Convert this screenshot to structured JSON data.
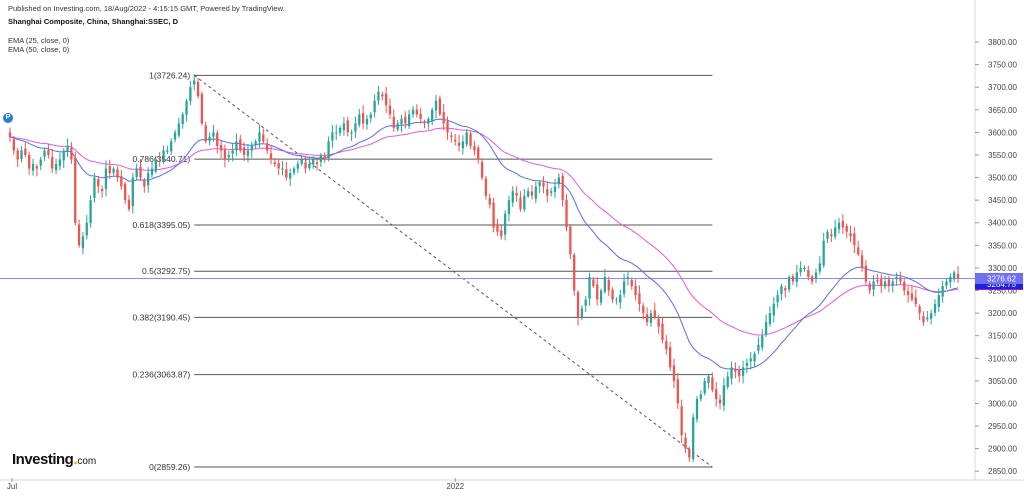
{
  "header": {
    "published": "Published on Investing.com, 18/Aug/2022 - 4:15:15 GMT, Powered by TradingView.",
    "symbol": "Shanghai Composite, China, Shanghai:SSEC, D",
    "ema1": "EMA (25, close, 0)",
    "ema2": "EMA (50, close, 0)"
  },
  "badge": "P",
  "logo": {
    "name": "Investing",
    "suffix": "com"
  },
  "colors": {
    "up": "#26a69a",
    "down": "#ef5350",
    "ema25": "#5b6ee1",
    "ema50": "#e15bd8",
    "fib": "#555555",
    "last_price_line": "#8a8aff",
    "last_tag": "#6f6ff2",
    "ema25_tag": "#1e22d6",
    "ema50_tag": "#e11be0"
  },
  "chart_data": {
    "type": "candlestick",
    "ylim": [
      2835,
      3820
    ],
    "y_ticks": [
      3800,
      3750,
      3700,
      3650,
      3600,
      3550,
      3500,
      3450,
      3400,
      3350,
      3300,
      3250,
      3200,
      3150,
      3100,
      3050,
      3000,
      2950,
      2900,
      2850
    ],
    "x_labels": [
      {
        "label": "Jul",
        "index": 0
      },
      {
        "label": "2022",
        "index": 116
      }
    ],
    "last_values": {
      "close": "3276.62",
      "ema25": "3264.75",
      "ema50": "3263.24"
    },
    "fib_levels": [
      {
        "label": "1(3726.24)",
        "value": 3726.24
      },
      {
        "label": "0.786(3540.71)",
        "value": 3540.71
      },
      {
        "label": "0.618(3395.05)",
        "value": 3395.05
      },
      {
        "label": "0.5(3292.75)",
        "value": 3292.75
      },
      {
        "label": "0.382(3190.45)",
        "value": 3190.45
      },
      {
        "label": "0.236(3063.87)",
        "value": 3063.87
      },
      {
        "label": "0(2859.26)",
        "value": 2859.26
      }
    ],
    "fib_trend": {
      "start_index": 48,
      "start_value": 3726.24,
      "end_index": 183,
      "end_value": 2859.26
    },
    "fib_span": {
      "start_index": 48,
      "end_index": 183
    },
    "closes": [
      3590,
      3560,
      3540,
      3560,
      3550,
      3520,
      3530,
      3520,
      3540,
      3560,
      3550,
      3520,
      3530,
      3540,
      3560,
      3570,
      3540,
      3400,
      3350,
      3370,
      3400,
      3450,
      3500,
      3480,
      3470,
      3520,
      3510,
      3520,
      3500,
      3480,
      3450,
      3430,
      3500,
      3520,
      3500,
      3480,
      3510,
      3520,
      3540,
      3540,
      3560,
      3560,
      3580,
      3600,
      3620,
      3640,
      3670,
      3700,
      3715,
      3680,
      3620,
      3580,
      3590,
      3600,
      3570,
      3560,
      3540,
      3550,
      3560,
      3580,
      3560,
      3550,
      3560,
      3570,
      3580,
      3600,
      3580,
      3560,
      3540,
      3530,
      3520,
      3520,
      3500,
      3510,
      3520,
      3530,
      3540,
      3520,
      3530,
      3540,
      3530,
      3550,
      3540,
      3580,
      3600,
      3600,
      3610,
      3620,
      3600,
      3600,
      3620,
      3640,
      3620,
      3630,
      3640,
      3670,
      3690,
      3680,
      3660,
      3640,
      3610,
      3620,
      3630,
      3620,
      3640,
      3650,
      3640,
      3630,
      3620,
      3630,
      3650,
      3670,
      3640,
      3620,
      3600,
      3590,
      3580,
      3570,
      3580,
      3600,
      3570,
      3560,
      3540,
      3500,
      3460,
      3440,
      3390,
      3380,
      3370,
      3420,
      3450,
      3470,
      3460,
      3430,
      3460,
      3470,
      3460,
      3480,
      3490,
      3480,
      3460,
      3470,
      3480,
      3500,
      3450,
      3390,
      3330,
      3250,
      3190,
      3210,
      3230,
      3280,
      3260,
      3230,
      3250,
      3280,
      3250,
      3230,
      3230,
      3240,
      3270,
      3280,
      3260,
      3240,
      3220,
      3200,
      3180,
      3200,
      3190,
      3170,
      3140,
      3120,
      3080,
      3050,
      3000,
      2930,
      2900,
      2880,
      2970,
      3010,
      3020,
      3050,
      3060,
      3030,
      3010,
      3000,
      3040,
      3060,
      3080,
      3070,
      3060,
      3080,
      3090,
      3100,
      3110,
      3130,
      3150,
      3180,
      3200,
      3220,
      3240,
      3260,
      3250,
      3280,
      3270,
      3290,
      3300,
      3300,
      3280,
      3270,
      3290,
      3310,
      3360,
      3380,
      3370,
      3390,
      3400,
      3390,
      3380,
      3370,
      3350,
      3330,
      3300,
      3270,
      3250,
      3270,
      3270,
      3260,
      3270,
      3260,
      3270,
      3280,
      3270,
      3250,
      3240,
      3230,
      3220,
      3200,
      3180,
      3190,
      3200,
      3220,
      3240,
      3260,
      3270,
      3280,
      3290,
      3277
    ]
  }
}
